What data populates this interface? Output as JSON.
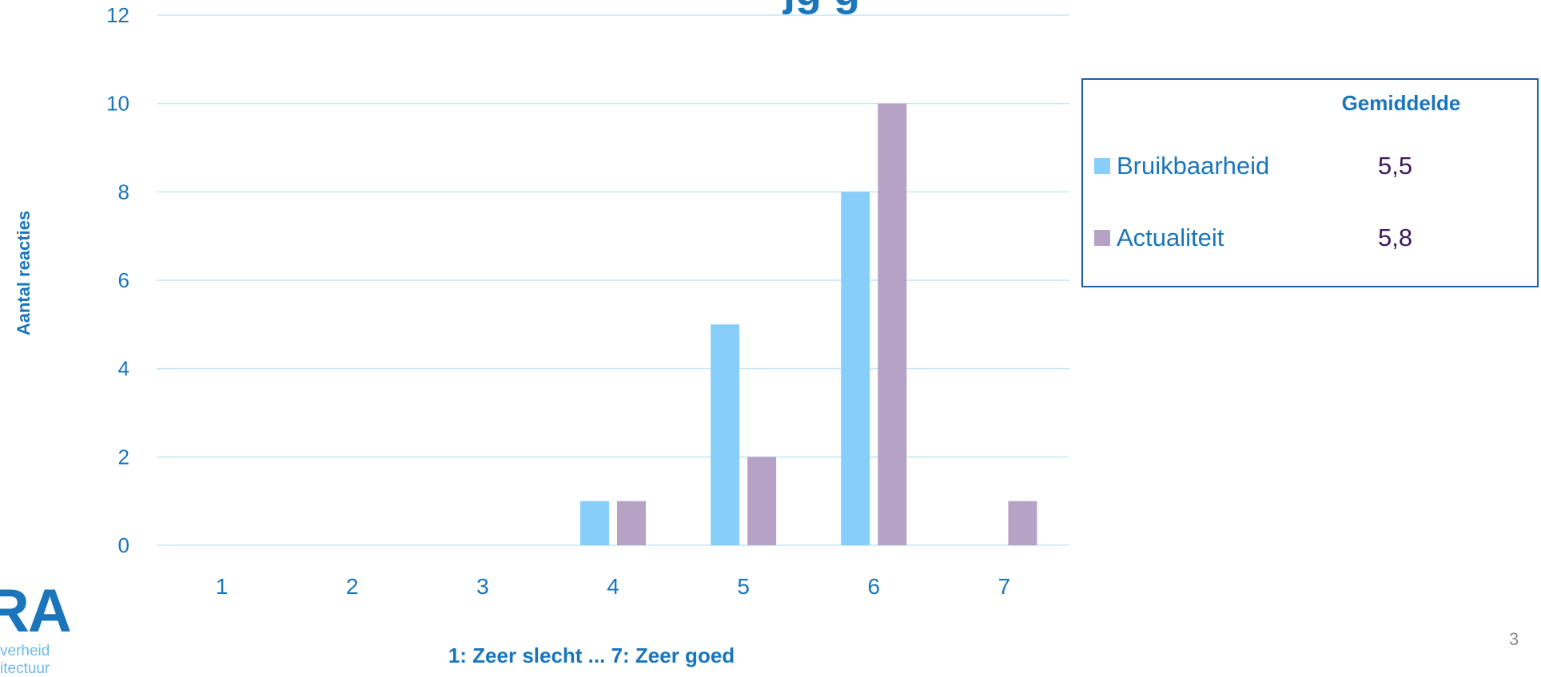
{
  "title_fragment": "jg g",
  "page_number": "3",
  "logo": {
    "letters": "RA",
    "line1": "verheid",
    "line2": "itectuur"
  },
  "legend": {
    "header": "Gemiddelde",
    "items": [
      {
        "name": "Bruikbaarheid",
        "avg": "5,5",
        "color": "#87cefa"
      },
      {
        "name": "Actualiteit",
        "avg": "5,8",
        "color": "#b5a2c5"
      }
    ]
  },
  "chart_data": {
    "type": "bar",
    "xlabel": "1: Zeer slecht ... 7: Zeer goed",
    "ylabel": "Aantal reacties",
    "categories": [
      "1",
      "2",
      "3",
      "4",
      "5",
      "6",
      "7"
    ],
    "ylim": [
      0,
      12
    ],
    "yticks": [
      0,
      2,
      4,
      6,
      8,
      10,
      12
    ],
    "grid": true,
    "legend_position": "right",
    "series": [
      {
        "name": "Bruikbaarheid",
        "color": "#87cefa",
        "values": [
          0,
          0,
          0,
          1,
          5,
          8,
          0
        ]
      },
      {
        "name": "Actualiteit",
        "color": "#b5a2c5",
        "values": [
          0,
          0,
          0,
          1,
          2,
          10,
          1
        ]
      }
    ]
  }
}
